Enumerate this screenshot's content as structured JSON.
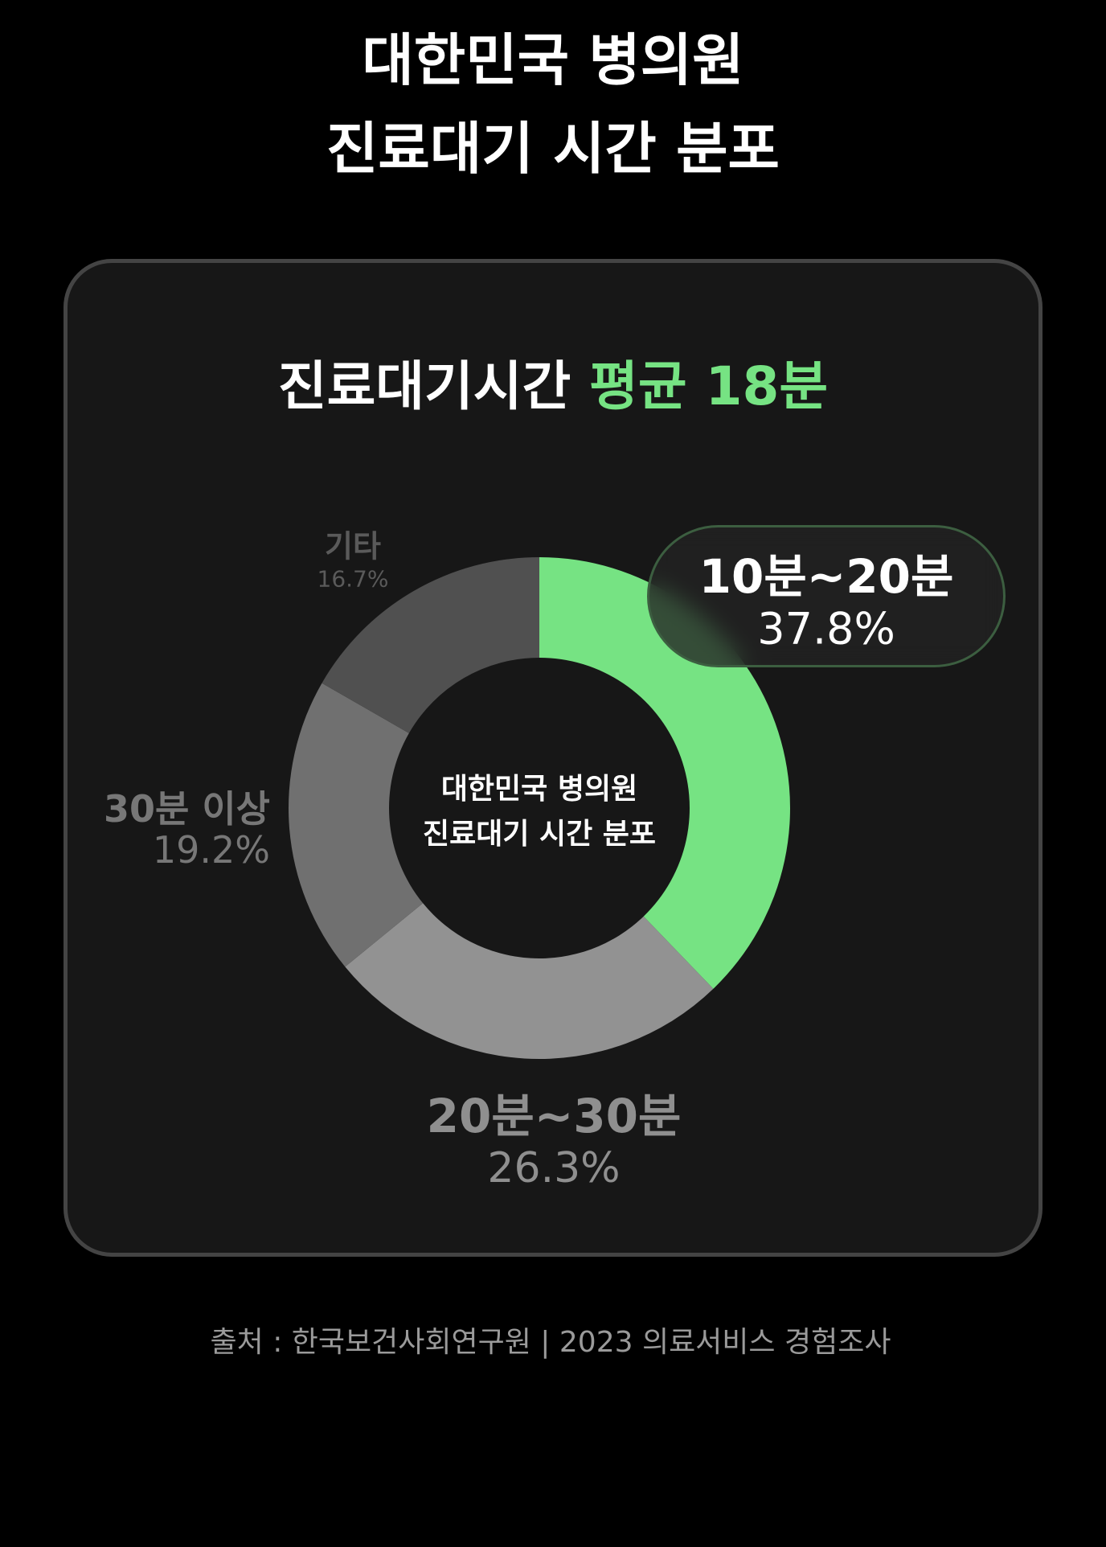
{
  "title": {
    "line1": "대한민국 병의원",
    "line2": "진료대기 시간 분포"
  },
  "heading": {
    "prefix": "진료대기시간",
    "accent": "평균 18분"
  },
  "center_label": {
    "line1": "대한민국 병의원",
    "line2": "진료대기 시간 분포"
  },
  "source": "출처 : 한국보건사회연구원 | 2023 의료서비스 경험조사",
  "colors": {
    "accent": "#76e383",
    "background": "#000000",
    "card": "#171717"
  },
  "chart_data": {
    "type": "pie",
    "variant": "donut",
    "start": "top",
    "direction": "clockwise",
    "slices": [
      {
        "label": "10분~20분",
        "value": 37.8,
        "display": "37.8%",
        "color": "#76e383",
        "highlighted": true
      },
      {
        "label": "20분~30분",
        "value": 26.3,
        "display": "26.3%",
        "color": "#929292"
      },
      {
        "label": "30분 이상",
        "value": 19.2,
        "display": "19.2%",
        "color": "#707070"
      },
      {
        "label": "기타",
        "value": 16.7,
        "display": "16.7%",
        "color": "#505050"
      }
    ]
  }
}
